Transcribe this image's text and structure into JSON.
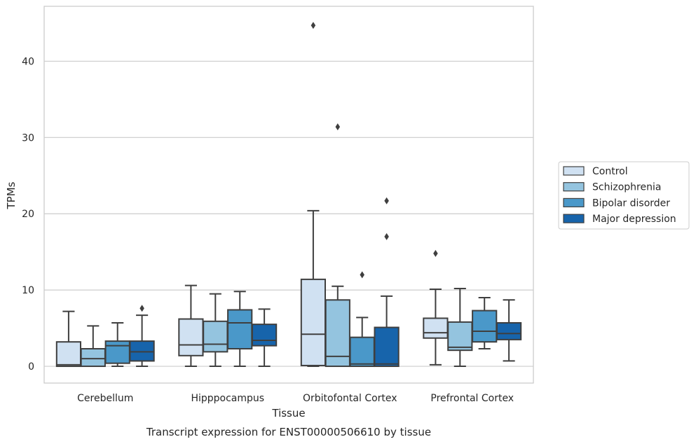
{
  "chart_data": {
    "type": "box",
    "title": "Transcript expression for ENST00000506610 by tissue",
    "xlabel": "Tissue",
    "ylabel": "TPMs",
    "categories": [
      "Cerebellum",
      "Hipppocampus",
      "Orbitofontal Cortex",
      "Prefrontal Cortex"
    ],
    "ylim": [
      -2.2,
      47.2
    ],
    "yticks": [
      0,
      10,
      20,
      30,
      40
    ],
    "grid": "horizontal",
    "legend_position": "right",
    "series": [
      {
        "name": "Control",
        "color": "#d0e1f2",
        "boxes": [
          {
            "whisker_low": 0.0,
            "q1": 0.0,
            "median": 0.2,
            "q3": 3.2,
            "whisker_high": 7.2,
            "outliers": []
          },
          {
            "whisker_low": 0.0,
            "q1": 1.4,
            "median": 2.8,
            "q3": 6.2,
            "whisker_high": 10.6,
            "outliers": []
          },
          {
            "whisker_low": 0.0,
            "q1": 0.1,
            "median": 4.2,
            "q3": 11.4,
            "whisker_high": 20.4,
            "outliers": [
              44.7
            ]
          },
          {
            "whisker_low": 0.2,
            "q1": 3.7,
            "median": 4.4,
            "q3": 6.3,
            "whisker_high": 10.1,
            "outliers": [
              14.8
            ]
          }
        ]
      },
      {
        "name": "Schizophrenia",
        "color": "#94c4df",
        "boxes": [
          {
            "whisker_low": 0.0,
            "q1": 0.0,
            "median": 1.0,
            "q3": 2.3,
            "whisker_high": 5.3,
            "outliers": []
          },
          {
            "whisker_low": 0.0,
            "q1": 1.9,
            "median": 2.9,
            "q3": 5.9,
            "whisker_high": 9.5,
            "outliers": []
          },
          {
            "whisker_low": 0.0,
            "q1": 0.0,
            "median": 1.3,
            "q3": 8.7,
            "whisker_high": 10.5,
            "outliers": [
              31.4
            ]
          },
          {
            "whisker_low": 0.0,
            "q1": 2.1,
            "median": 2.5,
            "q3": 5.8,
            "whisker_high": 10.2,
            "outliers": []
          }
        ]
      },
      {
        "name": "Bipolar disorder",
        "color": "#4a98c9",
        "boxes": [
          {
            "whisker_low": 0.0,
            "q1": 0.4,
            "median": 2.7,
            "q3": 3.3,
            "whisker_high": 5.7,
            "outliers": []
          },
          {
            "whisker_low": 0.0,
            "q1": 2.3,
            "median": 5.7,
            "q3": 7.4,
            "whisker_high": 9.8,
            "outliers": []
          },
          {
            "whisker_low": 0.0,
            "q1": 0.0,
            "median": 0.3,
            "q3": 3.8,
            "whisker_high": 6.4,
            "outliers": [
              12.0
            ]
          },
          {
            "whisker_low": 2.3,
            "q1": 3.2,
            "median": 4.6,
            "q3": 7.3,
            "whisker_high": 9.0,
            "outliers": []
          }
        ]
      },
      {
        "name": "Major depression",
        "color": "#1764ab",
        "boxes": [
          {
            "whisker_low": 0.0,
            "q1": 0.7,
            "median": 1.9,
            "q3": 3.3,
            "whisker_high": 6.7,
            "outliers": [
              7.6
            ]
          },
          {
            "whisker_low": 0.0,
            "q1": 2.7,
            "median": 3.4,
            "q3": 5.5,
            "whisker_high": 7.5,
            "outliers": []
          },
          {
            "whisker_low": 0.0,
            "q1": 0.0,
            "median": 0.3,
            "q3": 5.1,
            "whisker_high": 9.2,
            "outliers": [
              17.0,
              21.7
            ]
          },
          {
            "whisker_low": 0.7,
            "q1": 3.5,
            "median": 4.3,
            "q3": 5.7,
            "whisker_high": 8.7,
            "outliers": []
          }
        ]
      }
    ]
  }
}
